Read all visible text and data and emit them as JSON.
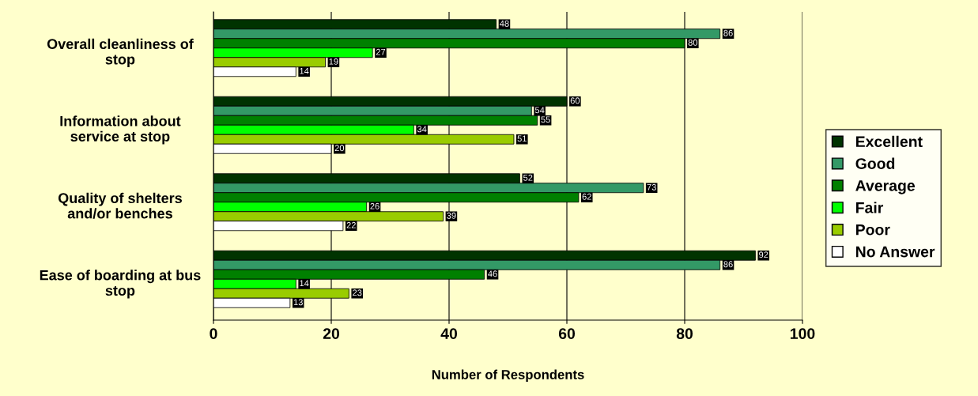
{
  "chart_data": {
    "type": "bar",
    "orientation": "horizontal",
    "xlabel": "Number of Respondents",
    "categories": [
      "Overall cleanliness of\nstop",
      "Information about\nservice at stop",
      "Quality of shelters\nand/or benches",
      "Ease of boarding at bus\nstop"
    ],
    "series": [
      {
        "name": "Excellent",
        "color": "#003300",
        "values": [
          48,
          60,
          52,
          92
        ]
      },
      {
        "name": "Good",
        "color": "#339966",
        "values": [
          86,
          54,
          73,
          86
        ]
      },
      {
        "name": "Average",
        "color": "#008000",
        "values": [
          80,
          55,
          62,
          46
        ]
      },
      {
        "name": "Fair",
        "color": "#00ff00",
        "values": [
          27,
          34,
          26,
          14
        ]
      },
      {
        "name": "Poor",
        "color": "#99cc00",
        "values": [
          19,
          51,
          39,
          23
        ]
      },
      {
        "name": "No Answer",
        "color": "#ffffff",
        "values": [
          14,
          20,
          22,
          13
        ]
      }
    ],
    "xlim": [
      0,
      100
    ],
    "xticks": [
      0,
      20,
      40,
      60,
      80,
      100
    ],
    "grid": "x",
    "legend": "right",
    "data_labels": true
  }
}
